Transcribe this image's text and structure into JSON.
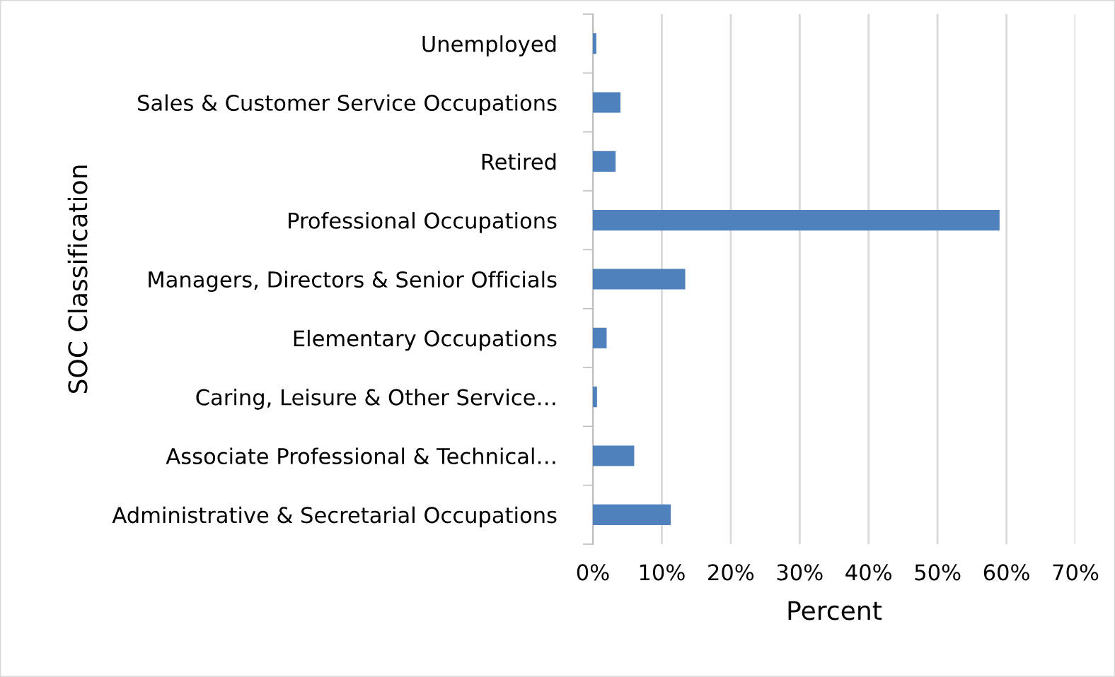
{
  "chart_data": {
    "type": "bar",
    "orientation": "horizontal",
    "xlabel": "Percent",
    "ylabel": "SOC Classification",
    "categories": [
      "Unemployed",
      "Sales & Customer Service Occupations",
      "Retired",
      "Professional Occupations",
      "Managers, Directors & Senior Officials",
      "Elementary Occupations",
      "Caring, Leisure & Other Service…",
      "Associate Professional & Technical…",
      "Administrative & Secretarial Occupations"
    ],
    "values": [
      0.5,
      4.0,
      3.3,
      59.0,
      13.4,
      2.0,
      0.6,
      6.0,
      11.3
    ],
    "color": "#4f81bd",
    "xlim": [
      0,
      70
    ],
    "xticks": [
      {
        "value": 0,
        "label": "0%"
      },
      {
        "value": 10,
        "label": "10%"
      },
      {
        "value": 20,
        "label": "20%"
      },
      {
        "value": 30,
        "label": "30%"
      },
      {
        "value": 40,
        "label": "40%"
      },
      {
        "value": 50,
        "label": "50%"
      },
      {
        "value": 60,
        "label": "60%"
      },
      {
        "value": 70,
        "label": "70%"
      }
    ],
    "grid": "x",
    "legend": false
  }
}
